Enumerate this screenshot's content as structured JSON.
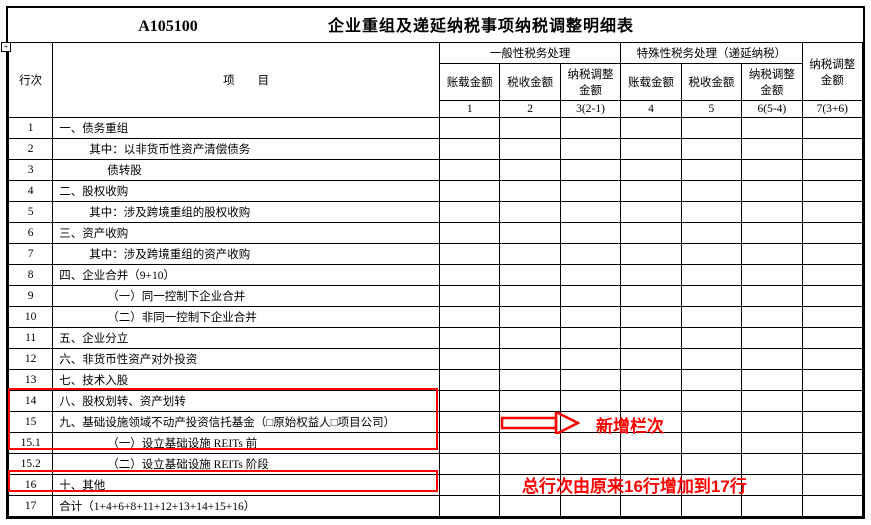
{
  "form_code": "A105100",
  "form_title": "企业重组及递延纳税事项纳税调整明细表",
  "header": {
    "row_label": "行次",
    "item_label": "项　　目",
    "group_general": "一般性税务处理",
    "group_special": "特殊性税务处理（递延纳税）",
    "col1_label": "账载金额",
    "col2_label": "税收金额",
    "col3_label": "纳税调整金额",
    "col4_label": "账载金额",
    "col5_label": "税收金额",
    "col6_label": "纳税调整金额",
    "col7_label": "纳税调整金额",
    "col1_num": "1",
    "col2_num": "2",
    "col3_num": "3(2-1)",
    "col4_num": "4",
    "col5_num": "5",
    "col6_num": "6(5-4)",
    "col7_num": "7(3+6)"
  },
  "rows": [
    {
      "n": "1",
      "item": "一、债务重组",
      "indent": 0
    },
    {
      "n": "2",
      "item": "其中：以非货币性资产清偿债务",
      "indent": 1
    },
    {
      "n": "3",
      "item": "债转股",
      "indent": 2
    },
    {
      "n": "4",
      "item": "二、股权收购",
      "indent": 0
    },
    {
      "n": "5",
      "item": "其中：涉及跨境重组的股权收购",
      "indent": 1
    },
    {
      "n": "6",
      "item": "三、资产收购",
      "indent": 0
    },
    {
      "n": "7",
      "item": "其中：涉及跨境重组的资产收购",
      "indent": 1
    },
    {
      "n": "8",
      "item": "四、企业合并（9+10）",
      "indent": 0
    },
    {
      "n": "9",
      "item": "（一）同一控制下企业合并",
      "indent": 2
    },
    {
      "n": "10",
      "item": "（二）非同一控制下企业合并",
      "indent": 2
    },
    {
      "n": "11",
      "item": "五、企业分立",
      "indent": 0
    },
    {
      "n": "12",
      "item": "六、非货币性资产对外投资",
      "indent": 0
    },
    {
      "n": "13",
      "item": "七、技术入股",
      "indent": 0
    },
    {
      "n": "14",
      "item": "八、股权划转、资产划转",
      "indent": 0
    },
    {
      "n": "15",
      "item": "九、基础设施领域不动产投资信托基金（□原始权益人□项目公司）",
      "indent": 0
    },
    {
      "n": "15.1",
      "item": "（一）设立基础设施 REITs 前",
      "indent": 2
    },
    {
      "n": "15.2",
      "item": "（二）设立基础设施 REITs 阶段",
      "indent": 2
    },
    {
      "n": "16",
      "item": "十、其他",
      "indent": 0
    },
    {
      "n": "17",
      "item": "合计（1+4+6+8+11+12+13+14+15+16）",
      "indent": 0
    }
  ],
  "annotations": {
    "new_col_label": "新增栏次",
    "total_row_label": "总行次由原来16行增加到17行"
  },
  "colors": {
    "annotation": "#ff0000",
    "border": "#000000",
    "background": "#ffffff"
  }
}
